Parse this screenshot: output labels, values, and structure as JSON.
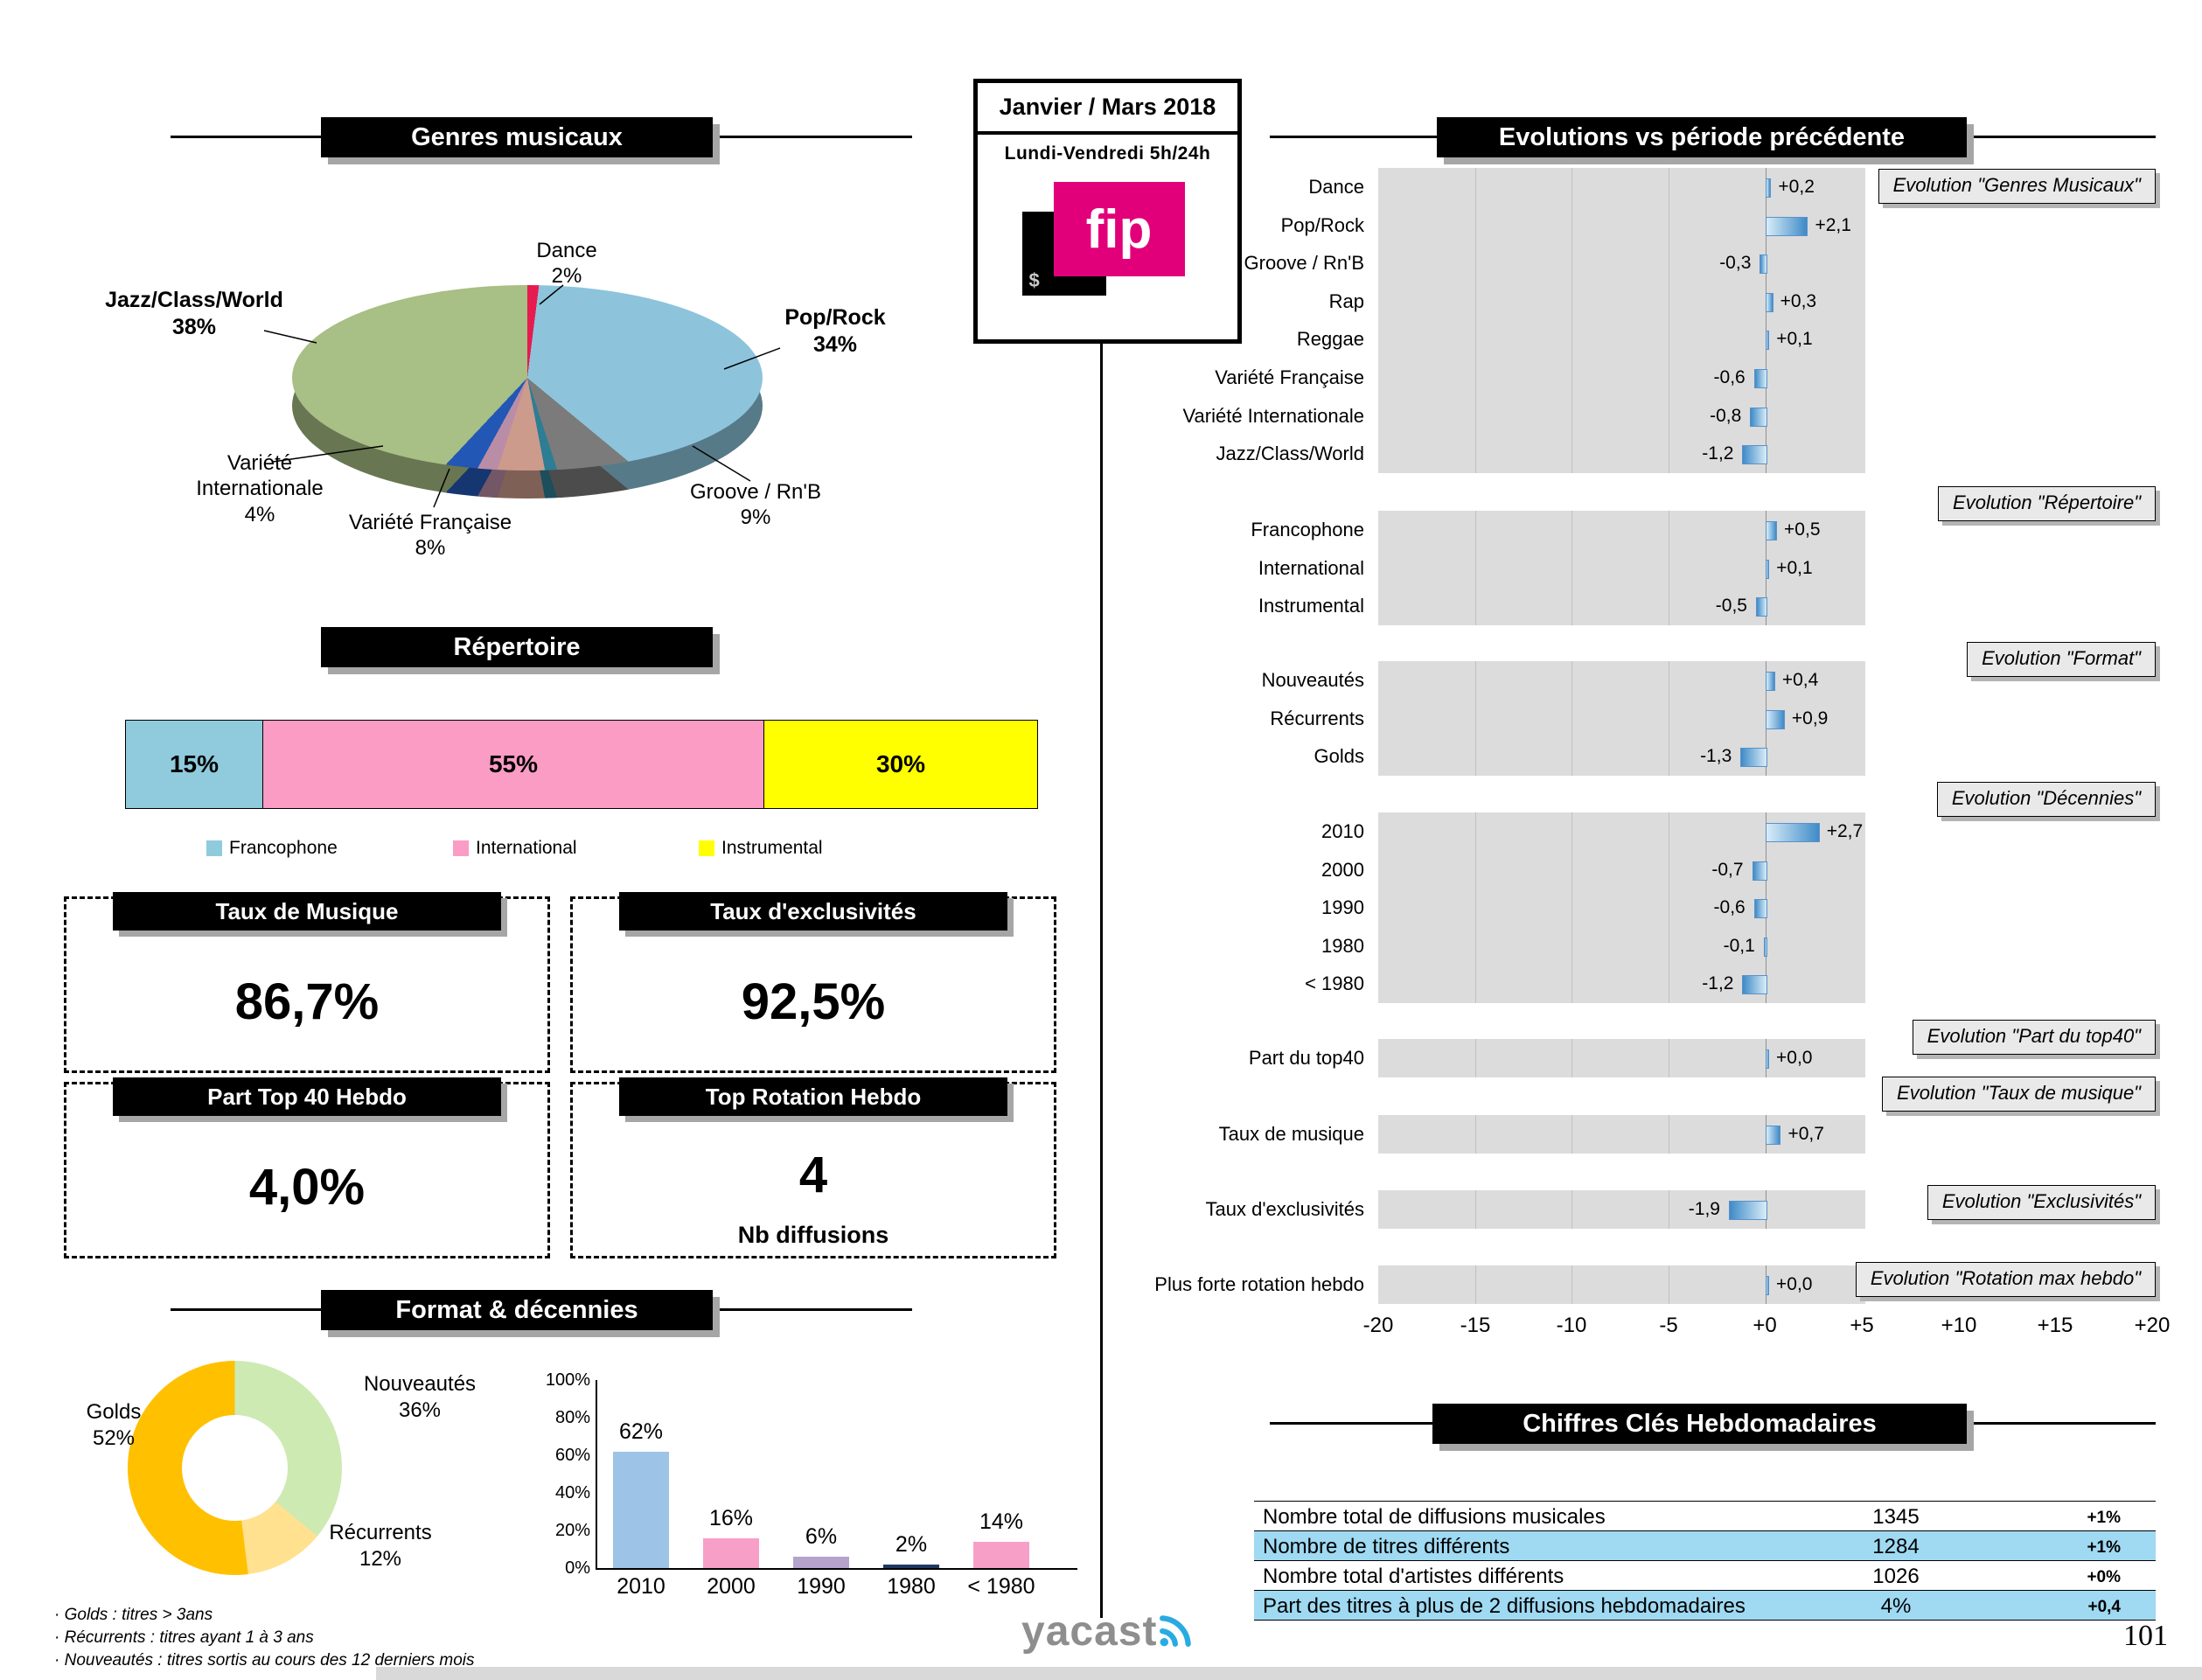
{
  "page": {
    "number": "101",
    "brand_logo": "yacast"
  },
  "period_box": {
    "title": "Janvier / Mars 2018",
    "subtitle": "Lundi-Vendredi 5h/24h",
    "logo_text": "fip",
    "logo_mark": "$",
    "logo_color": "#e2007a"
  },
  "sections": {
    "genres": {
      "header": "Genres musicaux"
    },
    "repertoire": {
      "header": "Répertoire"
    },
    "kpis": [
      {
        "title": "Taux de Musique",
        "value": "86,7%"
      },
      {
        "title": "Taux  d'exclusivités",
        "value": "92,5%"
      },
      {
        "title": "Part Top 40 Hebdo",
        "value": "4,0%"
      },
      {
        "title": "Top Rotation Hebdo",
        "value": "4",
        "sub_label": "Nb diffusions"
      }
    ],
    "format": {
      "header": "Format & décennies"
    },
    "evolutions": {
      "header": "Evolutions vs période précédente"
    },
    "weekly": {
      "header": "Chiffres Clés Hebdomadaires"
    }
  },
  "footnotes": [
    "· Golds : titres > 3ans",
    "· Récurrents : titres ayant 1 à 3 ans",
    "· Nouveautés  : titres sortis au cours des 12 derniers mois"
  ],
  "chart_data": [
    {
      "id": "genres_pie",
      "type": "pie",
      "style": "3d",
      "title": "Genres musicaux",
      "slices": [
        {
          "label": "Dance",
          "pct": 2,
          "pct_label": "2%",
          "color": "#e61b50"
        },
        {
          "label": "Pop/Rock",
          "pct": 34,
          "pct_label": "34%",
          "color": "#8dc4dc"
        },
        {
          "label": "Groove / Rn'B",
          "pct": 9,
          "pct_label": "9%",
          "color": "#7b7b7b"
        },
        {
          "label": "",
          "pct": 2,
          "pct_label": "",
          "color": "#2d7d95"
        },
        {
          "label": "Variété Française",
          "pct": 8,
          "pct_label": "8%",
          "color": "#cd9b8b"
        },
        {
          "label": "",
          "pct": 3,
          "pct_label": "",
          "color": "#ba8da6"
        },
        {
          "label": "Variété Internationale",
          "pct": 4,
          "pct_label": "4%",
          "color": "#2257b5"
        },
        {
          "label": "Jazz/Class/World",
          "pct": 38,
          "pct_label": "38%",
          "color": "#a8bf85"
        }
      ]
    },
    {
      "id": "repertoire_stack",
      "type": "bar",
      "subtype": "stacked-horizontal",
      "title": "Répertoire",
      "segments": [
        {
          "label": "Francophone",
          "pct": 15,
          "pct_label": "15%",
          "color": "#8fcbdc"
        },
        {
          "label": "International",
          "pct": 55,
          "pct_label": "55%",
          "color": "#fb9cc5"
        },
        {
          "label": "Instrumental",
          "pct": 30,
          "pct_label": "30%",
          "color": "#ffff00"
        }
      ]
    },
    {
      "id": "format_donut",
      "type": "pie",
      "subtype": "donut",
      "title": "Format",
      "slices": [
        {
          "label": "Nouveautés",
          "pct": 36,
          "pct_label": "36%",
          "color": "#cdeab3"
        },
        {
          "label": "Récurrents",
          "pct": 12,
          "pct_label": "12%",
          "color": "#ffe18f"
        },
        {
          "label": "Golds",
          "pct": 52,
          "pct_label": "52%",
          "color": "#ffc000"
        }
      ]
    },
    {
      "id": "decades_bar",
      "type": "bar",
      "title": "Décennies",
      "categories": [
        "2010",
        "2000",
        "1990",
        "1980",
        "< 1980"
      ],
      "values": [
        62,
        16,
        6,
        2,
        14
      ],
      "value_labels": [
        "62%",
        "16%",
        "6%",
        "2%",
        "14%"
      ],
      "colors": [
        "#9dc3e6",
        "#f89fc7",
        "#b5a2cd",
        "#1f3864",
        "#f89fc7"
      ],
      "y_ticks": [
        "0%",
        "20%",
        "40%",
        "60%",
        "80%",
        "100%"
      ],
      "ylim": [
        0,
        100
      ]
    },
    {
      "id": "evolutions",
      "type": "bar",
      "orientation": "horizontal",
      "title": "Evolutions vs période précédente",
      "xlim": [
        -20,
        20
      ],
      "x_ticks": [
        "-20",
        "-15",
        "-10",
        "-5",
        "+0",
        "+5",
        "+10",
        "+15",
        "+20"
      ],
      "bar_gradient": [
        "#d9ecf7",
        "#3e8bc8"
      ],
      "groups": [
        {
          "label": "Evolution \"Genres Musicaux\"",
          "rows": [
            {
              "category": "Dance",
              "value": 0.2,
              "display": "+0,2"
            },
            {
              "category": "Pop/Rock",
              "value": 2.1,
              "display": "+2,1"
            },
            {
              "category": "Groove / Rn'B",
              "value": -0.3,
              "display": "-0,3"
            },
            {
              "category": "Rap",
              "value": 0.3,
              "display": "+0,3"
            },
            {
              "category": "Reggae",
              "value": 0.1,
              "display": "+0,1"
            },
            {
              "category": "Variété Française",
              "value": -0.6,
              "display": "-0,6"
            },
            {
              "category": "Variété Internationale",
              "value": -0.8,
              "display": "-0,8"
            },
            {
              "category": "Jazz/Class/World",
              "value": -1.2,
              "display": "-1,2"
            }
          ]
        },
        {
          "label": "Evolution \"Répertoire\"",
          "rows": [
            {
              "category": "Francophone",
              "value": 0.5,
              "display": "+0,5"
            },
            {
              "category": "International",
              "value": 0.1,
              "display": "+0,1"
            },
            {
              "category": "Instrumental",
              "value": -0.5,
              "display": "-0,5"
            }
          ]
        },
        {
          "label": "Evolution \"Format\"",
          "rows": [
            {
              "category": "Nouveautés",
              "value": 0.4,
              "display": "+0,4"
            },
            {
              "category": "Récurrents",
              "value": 0.9,
              "display": "+0,9"
            },
            {
              "category": "Golds",
              "value": -1.3,
              "display": "-1,3"
            }
          ]
        },
        {
          "label": "Evolution \"Décennies\"",
          "rows": [
            {
              "category": "2010",
              "value": 2.7,
              "display": "+2,7"
            },
            {
              "category": "2000",
              "value": -0.7,
              "display": "-0,7"
            },
            {
              "category": "1990",
              "value": -0.6,
              "display": "-0,6"
            },
            {
              "category": "1980",
              "value": -0.1,
              "display": "-0,1"
            },
            {
              "category": "< 1980",
              "value": -1.2,
              "display": "-1,2"
            }
          ]
        },
        {
          "label": "Evolution \"Part du top40\"",
          "rows": [
            {
              "category": "Part du top40",
              "value": 0.0,
              "display": "+0,0"
            }
          ]
        },
        {
          "label": "Evolution \"Taux de musique\"",
          "rows": [
            {
              "category": "Taux de musique",
              "value": 0.7,
              "display": "+0,7"
            }
          ]
        },
        {
          "label": "Evolution \"Exclusivités\"",
          "rows": [
            {
              "category": "Taux d'exclusivités",
              "value": -1.9,
              "display": "-1,9"
            }
          ]
        },
        {
          "label": "Evolution \"Rotation max hebdo\"",
          "rows": [
            {
              "category": "Plus forte rotation hebdo",
              "value": 0.0,
              "display": "+0,0"
            }
          ]
        }
      ]
    },
    {
      "id": "weekly_table",
      "type": "table",
      "title": "Chiffres Clés Hebdomadaires",
      "rows": [
        {
          "label": "Nombre total de diffusions musicales",
          "value": "1345",
          "delta": "+1%",
          "highlight": false
        },
        {
          "label": "Nombre de titres différents",
          "value": "1284",
          "delta": "+1%",
          "highlight": true
        },
        {
          "label": "Nombre total d'artistes différents",
          "value": "1026",
          "delta": "+0%",
          "highlight": false
        },
        {
          "label": "Part des titres à plus de 2 diffusions hebdomadaires",
          "value": "4%",
          "delta": "+0,4",
          "highlight": true
        }
      ]
    }
  ]
}
